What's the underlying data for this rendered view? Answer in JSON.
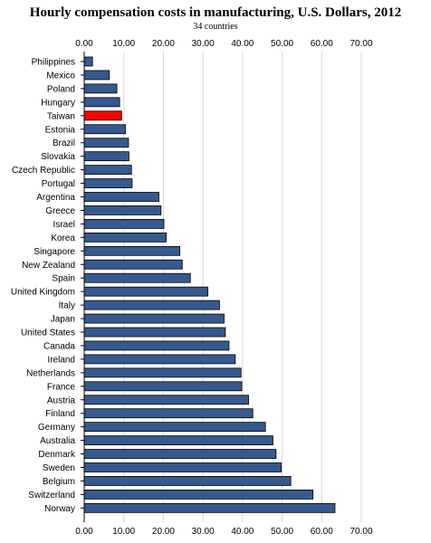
{
  "chart_data": {
    "type": "bar",
    "orientation": "horizontal",
    "title": "Hourly compensation costs in manufacturing, U.S. Dollars, 2012",
    "subtitle": "34 countries",
    "xlim": [
      0,
      70
    ],
    "x_ticks": [
      "0.00",
      "10.00",
      "20.00",
      "30.00",
      "40.00",
      "50.00",
      "60.00",
      "70.00"
    ],
    "tick_values": [
      0,
      10,
      20,
      30,
      40,
      50,
      60,
      70
    ],
    "x_axis_position": "top and bottom",
    "grid": true,
    "bar_color": "#36598e",
    "highlight_color": "#ff0000",
    "highlight_category": "Taiwan",
    "categories": [
      "Philippines",
      "Mexico",
      "Poland",
      "Hungary",
      "Taiwan",
      "Estonia",
      "Brazil",
      "Slovakia",
      "Czech Republic",
      "Portugal",
      "Argentina",
      "Greece",
      "Israel",
      "Korea",
      "Singapore",
      "New Zealand",
      "Spain",
      "United Kingdom",
      "Italy",
      "Japan",
      "United States",
      "Canada",
      "Ireland",
      "Netherlands",
      "France",
      "Austria",
      "Finland",
      "Germany",
      "Australia",
      "Denmark",
      "Sweden",
      "Belgium",
      "Switzerland",
      "Norway"
    ],
    "values": [
      2.1,
      6.36,
      8.25,
      8.95,
      9.46,
      10.41,
      11.2,
      11.3,
      11.95,
      12.1,
      18.87,
      19.41,
      20.14,
      20.72,
      24.16,
      24.77,
      26.83,
      31.23,
      34.18,
      35.34,
      35.67,
      36.59,
      38.17,
      39.62,
      39.81,
      41.53,
      42.6,
      45.79,
      47.68,
      48.47,
      49.8,
      52.19,
      57.79,
      63.36
    ]
  }
}
